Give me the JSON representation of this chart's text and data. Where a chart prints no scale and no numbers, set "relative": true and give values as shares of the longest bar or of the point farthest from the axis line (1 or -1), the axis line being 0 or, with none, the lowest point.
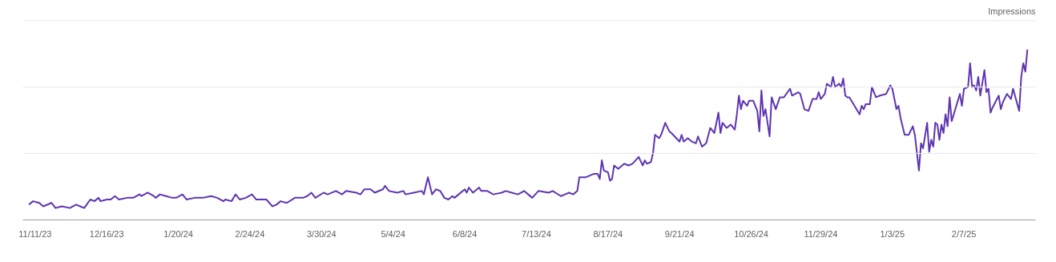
{
  "chart_data": {
    "type": "line",
    "relative": true,
    "ylabel": "Impressions",
    "tick_labels": "x",
    "ref_lines": [
      {
        "axis": "y",
        "value": 0.39,
        "color": "#e8e8e8"
      },
      {
        "axis": "y",
        "value": 0.78,
        "color": "#e8e8e8"
      },
      {
        "axis": "y",
        "value": 1.17,
        "color": "#e8e8e8"
      }
    ],
    "xlim": [
      "2023-11-05",
      "2025-03-14"
    ],
    "xticks": [
      {
        "value": "2023-11-11",
        "label": "11/11/23"
      },
      {
        "value": "2023-12-16",
        "label": "12/16/23"
      },
      {
        "value": "2024-01-20",
        "label": "1/20/24"
      },
      {
        "value": "2024-02-24",
        "label": "2/24/24"
      },
      {
        "value": "2024-03-30",
        "label": "3/30/24"
      },
      {
        "value": "2024-05-04",
        "label": "5/4/24"
      },
      {
        "value": "2024-06-08",
        "label": "6/8/24"
      },
      {
        "value": "2024-07-13",
        "label": "7/13/24"
      },
      {
        "value": "2024-08-17",
        "label": "8/17/24"
      },
      {
        "value": "2024-09-21",
        "label": "9/21/24"
      },
      {
        "value": "2024-10-26",
        "label": "10/26/24"
      },
      {
        "value": "2024-11-29",
        "label": "11/29/24"
      },
      {
        "value": "2025-01-03",
        "label": "1/3/25"
      },
      {
        "value": "2025-02-07",
        "label": "2/7/25"
      }
    ],
    "x": [
      "2023-11-08",
      "2023-11-10",
      "2023-11-13",
      "2023-11-15",
      "2023-11-19",
      "2023-11-21",
      "2023-11-24",
      "2023-11-28",
      "2023-12-01",
      "2023-12-03",
      "2023-12-05",
      "2023-12-08",
      "2023-12-10",
      "2023-12-12",
      "2023-12-13",
      "2023-12-16",
      "2023-12-18",
      "2023-12-20",
      "2023-12-22",
      "2023-12-26",
      "2023-12-29",
      "2024-01-01",
      "2024-01-02",
      "2024-01-05",
      "2024-01-08",
      "2024-01-09",
      "2024-01-11",
      "2024-01-14",
      "2024-01-17",
      "2024-01-19",
      "2024-01-22",
      "2024-01-24",
      "2024-01-28",
      "2024-02-01",
      "2024-02-05",
      "2024-02-08",
      "2024-02-11",
      "2024-02-12",
      "2024-02-15",
      "2024-02-17",
      "2024-02-19",
      "2024-02-22",
      "2024-02-25",
      "2024-02-27",
      "2024-03-03",
      "2024-03-06",
      "2024-03-08",
      "2024-03-10",
      "2024-03-13",
      "2024-03-17",
      "2024-03-21",
      "2024-03-23",
      "2024-03-25",
      "2024-03-27",
      "2024-03-31",
      "2024-04-02",
      "2024-04-06",
      "2024-04-09",
      "2024-04-11",
      "2024-04-16",
      "2024-04-18",
      "2024-04-20",
      "2024-04-23",
      "2024-04-25",
      "2024-04-29",
      "2024-04-30",
      "2024-05-02",
      "2024-05-06",
      "2024-05-09",
      "2024-05-10",
      "2024-05-14",
      "2024-05-18",
      "2024-05-19",
      "2024-05-21",
      "2024-05-23",
      "2024-05-25",
      "2024-05-27",
      "2024-05-29",
      "2024-05-31",
      "2024-06-02",
      "2024-06-03",
      "2024-06-05",
      "2024-06-08",
      "2024-06-09",
      "2024-06-10",
      "2024-06-12",
      "2024-06-15",
      "2024-06-16",
      "2024-06-19",
      "2024-06-22",
      "2024-06-26",
      "2024-06-28",
      "2024-07-01",
      "2024-07-04",
      "2024-07-07",
      "2024-07-09",
      "2024-07-11",
      "2024-07-14",
      "2024-07-19",
      "2024-07-21",
      "2024-07-25",
      "2024-07-27",
      "2024-07-29",
      "2024-07-31",
      "2024-08-02",
      "2024-08-03",
      "2024-08-06",
      "2024-08-10",
      "2024-08-12",
      "2024-08-13",
      "2024-08-14",
      "2024-08-15",
      "2024-08-17",
      "2024-08-18",
      "2024-08-19",
      "2024-08-20",
      "2024-08-22",
      "2024-08-25",
      "2024-08-27",
      "2024-08-29",
      "2024-09-01",
      "2024-09-03",
      "2024-09-04",
      "2024-09-05",
      "2024-09-07",
      "2024-09-08",
      "2024-09-09",
      "2024-09-11",
      "2024-09-12",
      "2024-09-14",
      "2024-09-16",
      "2024-09-17",
      "2024-09-21",
      "2024-09-22",
      "2024-09-23",
      "2024-09-25",
      "2024-09-27",
      "2024-09-29",
      "2024-09-30",
      "2024-10-02",
      "2024-10-04",
      "2024-10-06",
      "2024-10-08",
      "2024-10-10",
      "2024-10-11",
      "2024-10-12",
      "2024-10-14",
      "2024-10-16",
      "2024-10-18",
      "2024-10-19",
      "2024-10-20",
      "2024-10-21",
      "2024-10-22",
      "2024-10-24",
      "2024-10-25",
      "2024-10-27",
      "2024-10-28",
      "2024-10-29",
      "2024-10-30",
      "2024-10-31",
      "2024-11-01",
      "2024-11-02",
      "2024-11-04",
      "2024-11-05",
      "2024-11-07",
      "2024-11-09",
      "2024-11-11",
      "2024-11-14",
      "2024-11-15",
      "2024-11-18",
      "2024-11-19",
      "2024-11-21",
      "2024-11-23",
      "2024-11-25",
      "2024-11-27",
      "2024-11-28",
      "2024-11-29",
      "2024-12-01",
      "2024-12-02",
      "2024-12-04",
      "2024-12-05",
      "2024-12-06",
      "2024-12-08",
      "2024-12-09",
      "2024-12-10",
      "2024-12-11",
      "2024-12-12",
      "2024-12-13",
      "2024-12-15",
      "2024-12-16",
      "2024-12-18",
      "2024-12-19",
      "2024-12-20",
      "2024-12-21",
      "2024-12-23",
      "2024-12-24",
      "2024-12-26",
      "2024-12-28",
      "2024-12-31",
      "2025-01-02",
      "2025-01-03",
      "2025-01-05",
      "2025-01-06",
      "2025-01-07",
      "2025-01-09",
      "2025-01-11",
      "2025-01-13",
      "2025-01-14",
      "2025-01-16",
      "2025-01-17",
      "2025-01-18",
      "2025-01-20",
      "2025-01-21",
      "2025-01-22",
      "2025-01-23",
      "2025-01-24",
      "2025-01-25",
      "2025-01-26",
      "2025-01-27",
      "2025-01-28",
      "2025-01-29",
      "2025-01-30",
      "2025-01-31",
      "2025-02-01",
      "2025-02-03",
      "2025-02-05",
      "2025-02-06",
      "2025-02-07",
      "2025-02-09",
      "2025-02-10",
      "2025-02-11",
      "2025-02-12",
      "2025-02-13",
      "2025-02-14",
      "2025-02-15",
      "2025-02-17",
      "2025-02-18",
      "2025-02-19",
      "2025-02-20",
      "2025-02-21",
      "2025-02-24",
      "2025-02-25",
      "2025-02-26",
      "2025-02-28",
      "2025-03-02",
      "2025-03-03",
      "2025-03-06",
      "2025-03-07",
      "2025-03-08",
      "2025-03-09",
      "2025-03-10"
    ],
    "series": [
      {
        "color": "#5e35b1",
        "values": [
          0.09,
          0.11,
          0.1,
          0.08,
          0.1,
          0.07,
          0.08,
          0.07,
          0.09,
          0.08,
          0.07,
          0.12,
          0.11,
          0.13,
          0.11,
          0.12,
          0.12,
          0.14,
          0.12,
          0.13,
          0.13,
          0.15,
          0.14,
          0.16,
          0.14,
          0.13,
          0.15,
          0.14,
          0.13,
          0.13,
          0.15,
          0.12,
          0.13,
          0.13,
          0.14,
          0.13,
          0.11,
          0.12,
          0.11,
          0.15,
          0.12,
          0.13,
          0.15,
          0.12,
          0.12,
          0.08,
          0.09,
          0.11,
          0.1,
          0.13,
          0.13,
          0.14,
          0.16,
          0.13,
          0.16,
          0.15,
          0.17,
          0.15,
          0.17,
          0.16,
          0.15,
          0.18,
          0.18,
          0.16,
          0.18,
          0.2,
          0.17,
          0.16,
          0.17,
          0.15,
          0.16,
          0.17,
          0.15,
          0.25,
          0.15,
          0.18,
          0.17,
          0.13,
          0.12,
          0.14,
          0.13,
          0.15,
          0.18,
          0.16,
          0.19,
          0.16,
          0.19,
          0.17,
          0.17,
          0.15,
          0.16,
          0.17,
          0.16,
          0.15,
          0.17,
          0.15,
          0.13,
          0.17,
          0.16,
          0.17,
          0.14,
          0.15,
          0.16,
          0.15,
          0.17,
          0.25,
          0.25,
          0.27,
          0.27,
          0.24,
          0.35,
          0.29,
          0.28,
          0.23,
          0.24,
          0.32,
          0.3,
          0.33,
          0.32,
          0.33,
          0.37,
          0.32,
          0.35,
          0.33,
          0.34,
          0.39,
          0.5,
          0.48,
          0.5,
          0.57,
          0.52,
          0.51,
          0.46,
          0.5,
          0.46,
          0.48,
          0.46,
          0.45,
          0.49,
          0.43,
          0.45,
          0.54,
          0.51,
          0.63,
          0.51,
          0.57,
          0.54,
          0.56,
          0.53,
          0.62,
          0.73,
          0.65,
          0.7,
          0.67,
          0.7,
          0.7,
          0.67,
          0.64,
          0.52,
          0.76,
          0.61,
          0.65,
          0.49,
          0.72,
          0.65,
          0.72,
          0.72,
          0.77,
          0.73,
          0.75,
          0.74,
          0.65,
          0.64,
          0.71,
          0.71,
          0.75,
          0.71,
          0.74,
          0.8,
          0.78,
          0.84,
          0.78,
          0.8,
          0.78,
          0.83,
          0.73,
          0.72,
          0.72,
          0.68,
          0.66,
          0.62,
          0.67,
          0.65,
          0.68,
          0.68,
          0.78,
          0.72,
          0.73,
          0.74,
          0.79,
          0.77,
          0.65,
          0.67,
          0.6,
          0.5,
          0.5,
          0.55,
          0.5,
          0.29,
          0.45,
          0.42,
          0.57,
          0.4,
          0.47,
          0.43,
          0.57,
          0.56,
          0.47,
          0.56,
          0.51,
          0.62,
          0.55,
          0.72,
          0.58,
          0.66,
          0.74,
          0.67,
          0.77,
          0.78,
          0.92,
          0.78,
          0.79,
          0.76,
          0.84,
          0.73,
          0.88,
          0.75,
          0.77,
          0.63,
          0.66,
          0.73,
          0.65,
          0.69,
          0.74,
          0.71,
          0.77,
          0.64,
          0.84,
          0.92,
          0.87,
          1
        ]
      }
    ]
  }
}
